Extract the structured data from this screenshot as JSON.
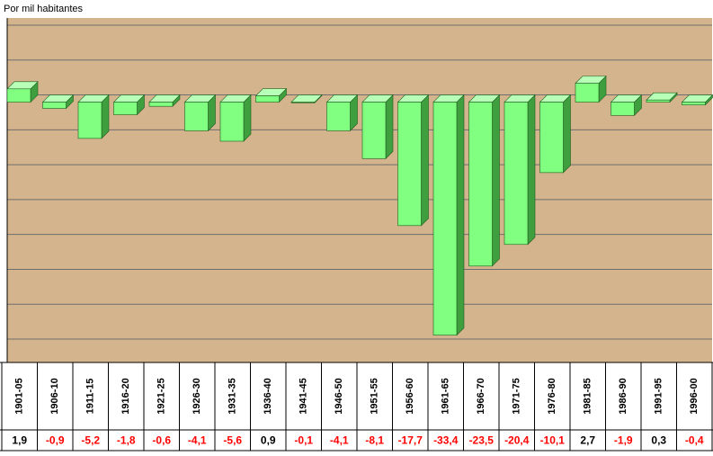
{
  "chart_data": {
    "type": "bar3d",
    "subtitle": "Por mil habitantes",
    "categories": [
      "1901-05",
      "1906-10",
      "1911-15",
      "1916-20",
      "1921-25",
      "1926-30",
      "1931-35",
      "1936-40",
      "1941-45",
      "1946-50",
      "1951-55",
      "1956-60",
      "1961-65",
      "1966-70",
      "1971-75",
      "1976-80",
      "1981-85",
      "1986-90",
      "1991-95",
      "1996-00"
    ],
    "values": [
      1.9,
      -0.9,
      -5.2,
      -1.8,
      -0.6,
      -4.1,
      -5.6,
      0.9,
      -0.1,
      -4.1,
      -8.1,
      -17.7,
      -33.4,
      -23.5,
      -20.4,
      -10.1,
      2.7,
      -1.9,
      0.3,
      -0.4
    ],
    "value_labels": [
      "1,9",
      "-0,9",
      "-5,2",
      "-1,8",
      "-0,6",
      "-4,1",
      "-5,6",
      "0,9",
      "-0,1",
      "-4,1",
      "-8,1",
      "-17,7",
      "-33,4",
      "-23,5",
      "-20,4",
      "-10,1",
      "2,7",
      "-1,9",
      "0,3",
      "-0,4"
    ],
    "color": "#80ff80",
    "label_colors": {
      "positive": "#000000",
      "negative": "#ff0000"
    },
    "ylim": [
      -35,
      10
    ],
    "yticks": [
      -35,
      -30,
      -25,
      -20,
      -15,
      -10,
      -5,
      0,
      5,
      10
    ],
    "grid": true
  }
}
